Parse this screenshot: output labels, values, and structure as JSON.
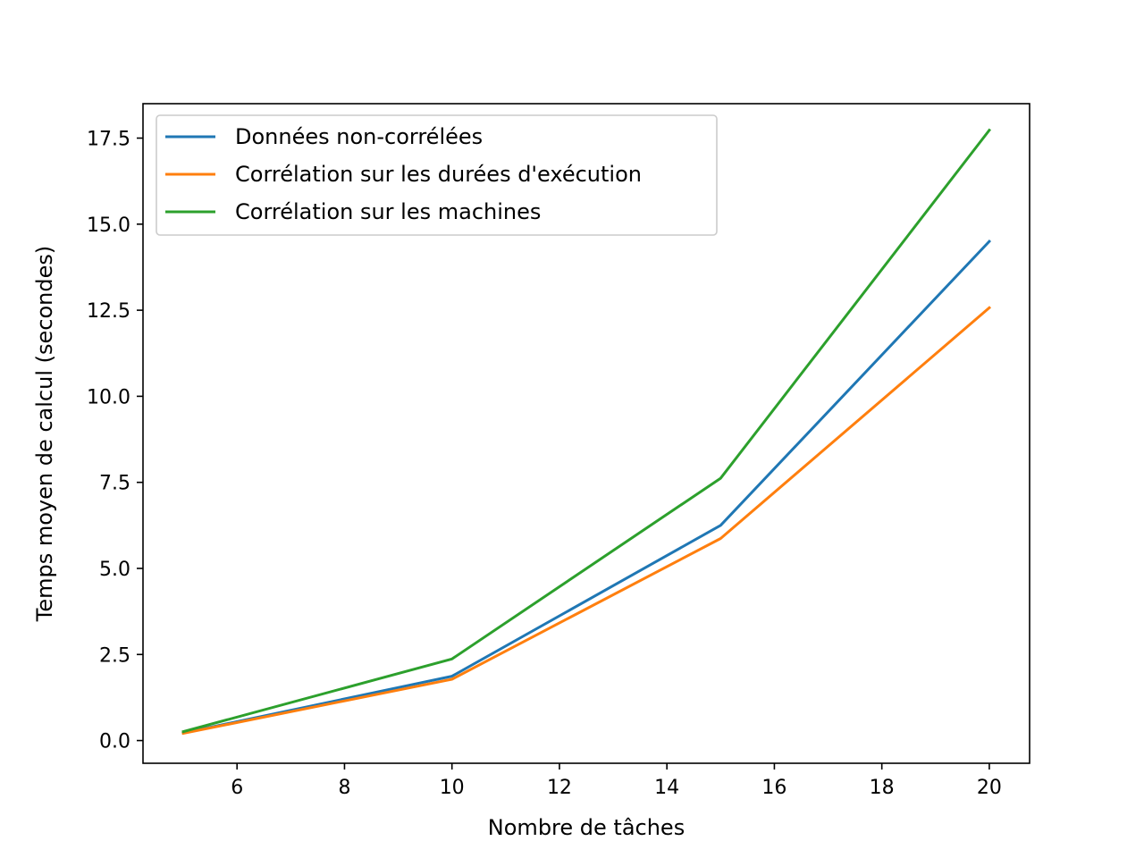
{
  "chart_data": {
    "type": "line",
    "title": "",
    "xlabel": "Nombre de tâches",
    "ylabel": "Temps moyen de calcul (secondes)",
    "x": [
      5,
      10,
      15,
      20
    ],
    "xlim": [
      4.25,
      20.75
    ],
    "ylim": [
      -0.66,
      18.5
    ],
    "xticks": [
      6,
      8,
      10,
      12,
      14,
      16,
      18,
      20
    ],
    "yticks": [
      0.0,
      2.5,
      5.0,
      7.5,
      10.0,
      12.5,
      15.0,
      17.5
    ],
    "xtick_labels": [
      "6",
      "8",
      "10",
      "12",
      "14",
      "16",
      "18",
      "20"
    ],
    "ytick_labels": [
      "0.0",
      "2.5",
      "5.0",
      "7.5",
      "10.0",
      "12.5",
      "15.0",
      "17.5"
    ],
    "grid": false,
    "legend_position": "top-left",
    "series": [
      {
        "name": "Données non-corrélées",
        "color": "#1f77b4",
        "values": [
          0.22,
          1.87,
          6.25,
          14.5
        ]
      },
      {
        "name": "Corrélation sur les durées d'exécution",
        "color": "#ff7f0e",
        "values": [
          0.21,
          1.78,
          5.87,
          12.57
        ]
      },
      {
        "name": "Corrélation sur les machines",
        "color": "#2ca02c",
        "values": [
          0.26,
          2.37,
          7.62,
          17.73
        ]
      }
    ]
  }
}
